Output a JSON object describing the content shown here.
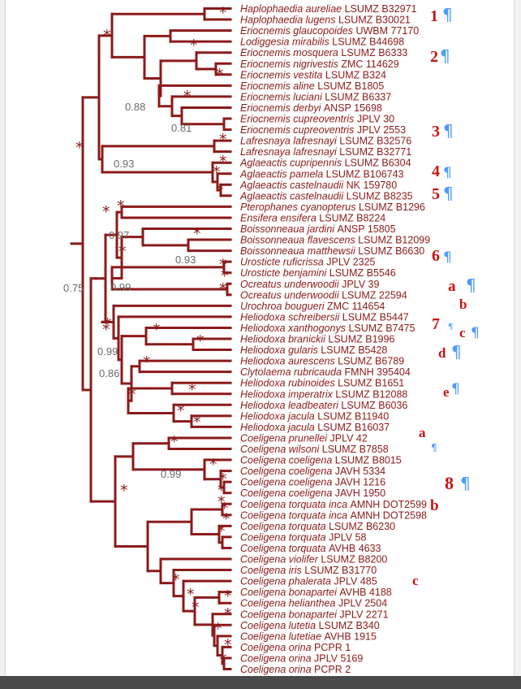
{
  "taxa": [
    {
      "genus": "Haplophaedia aureliae",
      "code": "LSUMZ B32971"
    },
    {
      "genus": "Haplophaedia lugens",
      "code": "LSUMZ B30021"
    },
    {
      "genus": "Eriocnemis glaucopoides",
      "code": "UWBM 77170"
    },
    {
      "genus": "Lodiggesia mirabilis",
      "code": "LSUMZ B44698"
    },
    {
      "genus": "Eriocnemis mosquera",
      "code": "LSUMZ B6333"
    },
    {
      "genus": "Eriocnemis nigrivestis",
      "code": "ZMC 114629"
    },
    {
      "genus": "Eriocnemis vestita",
      "code": "LSUMZ B324"
    },
    {
      "genus": "Eriocnemis aline",
      "code": "LSUMZ B1805"
    },
    {
      "genus": "Eriocnemis luciani",
      "code": "LSUMZ B6337"
    },
    {
      "genus": "Eriocnemis derbyi",
      "code": "ANSP 15698"
    },
    {
      "genus": "Eriocnemis cupreoventris",
      "code": "JPLV 30"
    },
    {
      "genus": "Eriocnemis cupreoventris",
      "code": "JPLV 2553"
    },
    {
      "genus": "Lafresnaya lafresnayi",
      "code": "LSUMZ B32576"
    },
    {
      "genus": "Lafresnaya lafresnayi",
      "code": "LSUMZ B32771"
    },
    {
      "genus": "Aglaeactis cupripennis",
      "code": "LSUMZ B6304"
    },
    {
      "genus": "Aglaeactis pamela",
      "code": "LSUMZ B106743"
    },
    {
      "genus": "Aglaeactis castelnaudii",
      "code": "NK 159780"
    },
    {
      "genus": "Aglaeactis castelnaudii",
      "code": "LSUMZ B8235"
    },
    {
      "genus": "Pterophanes cyanopterus",
      "code": "LSUMZ B1296"
    },
    {
      "genus": "Ensifera ensifera",
      "code": "LSUMZ B8224"
    },
    {
      "genus": "Boissonneaua jardini",
      "code": "ANSP 15805"
    },
    {
      "genus": "Boissonneaua flavescens",
      "code": "LSUMZ B12099"
    },
    {
      "genus": "Boissonneaua matthewsii",
      "code": "LSUMZ B6630"
    },
    {
      "genus": "Urosticte ruficrissa",
      "code": "JPLV 2325"
    },
    {
      "genus": "Urosticte benjamini",
      "code": "LSUMZ B5546"
    },
    {
      "genus": "Ocreatus underwoodii",
      "code": "JPLV 39"
    },
    {
      "genus": "Ocreatus underwoodii",
      "code": "LSUMZ 22594"
    },
    {
      "genus": "Urochroa bougueri",
      "code": "ZMC 114654"
    },
    {
      "genus": "Heliodoxa schreibersii",
      "code": "LSUMZ B5447"
    },
    {
      "genus": "Heliodoxa xanthogonys",
      "code": "LSUMZ B7475"
    },
    {
      "genus": "Heliodoxa branickii",
      "code": "LSUMZ B1996"
    },
    {
      "genus": "Heliodoxa gularis",
      "code": "LSUMZ B5428"
    },
    {
      "genus": "Heliodoxa aurescens",
      "code": "LSUMZ B6789"
    },
    {
      "genus": "Clytolaema rubricauda",
      "code": "FMNH 395404"
    },
    {
      "genus": "Heliodoxa rubinoides",
      "code": "LSUMZ B1651"
    },
    {
      "genus": "Heliodoxa imperatrix",
      "code": "LSUMZ B12088"
    },
    {
      "genus": "Heliodoxa leadbeateri",
      "code": "LSUMZ B6036"
    },
    {
      "genus": "Heliodoxa jacula",
      "code": "LSUMZ B11940"
    },
    {
      "genus": "Heliodoxa jacula",
      "code": "LSUMZ B16037"
    },
    {
      "genus": "Coeligena prunellei",
      "code": "JPLV 42"
    },
    {
      "genus": "Coeligena wilsoni",
      "code": "LSUMZ B7858"
    },
    {
      "genus": "Coeligena coeligena",
      "code": "LSUMZ B8015"
    },
    {
      "genus": "Coeligena coeligena",
      "code": "JAVH 5334"
    },
    {
      "genus": "Coeligena coeligena",
      "code": "JAVH 1216"
    },
    {
      "genus": "Coeligena coeligena",
      "code": "JAVH 1950"
    },
    {
      "genus": "Coeligena torquata inca",
      "code": "AMNH DOT2599"
    },
    {
      "genus": "Coeligena torquata inca",
      "code": "AMNH DOT2598"
    },
    {
      "genus": "Coeligena torquata",
      "code": "LSUMZ B6230"
    },
    {
      "genus": "Coeligena torquata",
      "code": "JPLV 58"
    },
    {
      "genus": "Coeligena torquata",
      "code": "AVHB 4633"
    },
    {
      "genus": "Coeligena violifer",
      "code": "LSUMZ B8200"
    },
    {
      "genus": "Coeligena iris",
      "code": "LSUMZ B31770"
    },
    {
      "genus": "Coeligena phalerata",
      "code": "JPLV 485"
    },
    {
      "genus": "Coeligena bonapartei",
      "code": "AVHB 4188"
    },
    {
      "genus": "Coeligena helianthea",
      "code": "JPLV 2504"
    },
    {
      "genus": "Coeligena bonapartei",
      "code": "JPLV 2271"
    },
    {
      "genus": "Coeligena lutetia",
      "code": "LSUMZ B340"
    },
    {
      "genus": "Coeligena lutetiae",
      "code": "AVHB 1915"
    },
    {
      "genus": "Coeligena orina",
      "code": "PCPR 1"
    },
    {
      "genus": "Coeligena orina",
      "code": "JPLV 5169"
    },
    {
      "genus": "Coeligena orina",
      "code": "PCPR 2"
    }
  ],
  "support_values": [
    "0.88",
    "0.81",
    "0.93",
    "0.97",
    "0.93",
    "0.75",
    "0.99",
    "0.99",
    "0.86",
    "0.99"
  ],
  "support_star": "*",
  "red_markers": [
    "1",
    "2",
    "3",
    "4",
    "5",
    "6",
    "7",
    "8",
    "a",
    "b",
    "c",
    "d",
    "e",
    "a",
    "b",
    "c"
  ],
  "pilcrow_glyph": "¶",
  "colors": {
    "branch": "#8b1a1a",
    "taxon_text": "#8b1a1a",
    "support_text": "#6a6a6a",
    "marker": "#cc1111",
    "pilcrow": "#4d9bff"
  }
}
